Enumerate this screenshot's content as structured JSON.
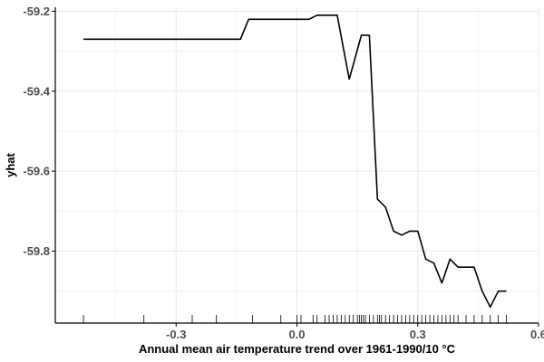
{
  "chart_data": {
    "type": "line",
    "title": "",
    "xlabel": "Annual mean air temperature trend over 1961-1990/10 °C",
    "ylabel": "yhat",
    "xlim": [
      -0.6,
      0.6
    ],
    "ylim": [
      -59.98,
      -59.19
    ],
    "x_ticks": [
      -0.3,
      0.0,
      0.3,
      0.6
    ],
    "x_tick_labels": [
      "-0.3",
      "0.0",
      "0.3",
      "0.6"
    ],
    "y_ticks": [
      -59.2,
      -59.4,
      -59.6,
      -59.8
    ],
    "y_tick_labels": [
      "-59.2",
      "-59.4",
      "-59.6",
      "-59.8"
    ],
    "grid": true,
    "rug": true,
    "series": [
      {
        "x": [
          -0.53,
          -0.45,
          -0.38,
          -0.3,
          -0.2,
          -0.14,
          -0.12,
          -0.1,
          -0.05,
          0.0,
          0.03,
          0.05,
          0.1,
          0.13,
          0.16,
          0.18,
          0.2,
          0.22,
          0.24,
          0.26,
          0.28,
          0.3,
          0.32,
          0.34,
          0.36,
          0.38,
          0.4,
          0.42,
          0.44,
          0.46,
          0.48,
          0.5,
          0.52
        ],
        "y": [
          -59.27,
          -59.27,
          -59.27,
          -59.27,
          -59.27,
          -59.27,
          -59.22,
          -59.22,
          -59.22,
          -59.22,
          -59.22,
          -59.21,
          -59.21,
          -59.37,
          -59.26,
          -59.26,
          -59.67,
          -59.69,
          -59.75,
          -59.76,
          -59.75,
          -59.75,
          -59.82,
          -59.83,
          -59.88,
          -59.82,
          -59.84,
          -59.84,
          -59.84,
          -59.9,
          -59.94,
          -59.9,
          -59.9
        ]
      }
    ],
    "rug_x": [
      -0.53,
      -0.38,
      -0.26,
      -0.2,
      -0.11,
      -0.04,
      0.0,
      0.01,
      0.04,
      0.05,
      0.07,
      0.08,
      0.09,
      0.1,
      0.11,
      0.12,
      0.13,
      0.14,
      0.15,
      0.155,
      0.16,
      0.165,
      0.17,
      0.18,
      0.19,
      0.2,
      0.205,
      0.21,
      0.22,
      0.23,
      0.24,
      0.25,
      0.26,
      0.27,
      0.28,
      0.29,
      0.3,
      0.31,
      0.32,
      0.33,
      0.34,
      0.35,
      0.36,
      0.37,
      0.38,
      0.39,
      0.4,
      0.42,
      0.44,
      0.46,
      0.48,
      0.5,
      0.52
    ],
    "colors": {
      "line": "#000000",
      "grid": "#ebebeb",
      "axis": "#000000",
      "tick_text": "#4d4d4d"
    }
  }
}
